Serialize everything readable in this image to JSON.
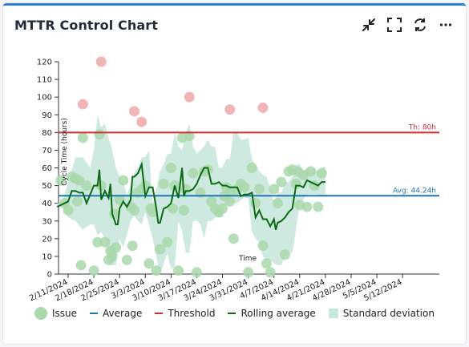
{
  "widget": {
    "title": "MTTR Control Chart",
    "actions": [
      {
        "name": "collapse",
        "icon": "collapse-icon"
      },
      {
        "name": "fullscreen",
        "icon": "fullscreen-icon"
      },
      {
        "name": "refresh",
        "icon": "refresh-icon"
      },
      {
        "name": "more",
        "icon": "more-icon"
      }
    ]
  },
  "chart_data": {
    "type": "scatter",
    "ylabel": "Cycle Time (hours)",
    "xlabel": "Time",
    "ylim": [
      0,
      120
    ],
    "yticks": [
      0,
      10,
      20,
      30,
      40,
      50,
      60,
      70,
      80,
      90,
      100,
      110,
      120
    ],
    "xlim": [
      0,
      101
    ],
    "x_ticks": [
      {
        "x": 0,
        "label": "2/11/2024"
      },
      {
        "x": 7,
        "label": "2/18/2024"
      },
      {
        "x": 14,
        "label": "2/25/2024"
      },
      {
        "x": 21,
        "label": "3/3/2024"
      },
      {
        "x": 28,
        "label": "3/10/2024"
      },
      {
        "x": 35,
        "label": "3/17/2024"
      },
      {
        "x": 42,
        "label": "3/24/2024"
      },
      {
        "x": 49,
        "label": "3/31/2024"
      },
      {
        "x": 56,
        "label": "4/7/2024"
      },
      {
        "x": 63,
        "label": "4/14/2024"
      },
      {
        "x": 70,
        "label": "4/21/2024"
      },
      {
        "x": 77,
        "label": "4/28/2024"
      },
      {
        "x": 84,
        "label": "5/5/2024"
      },
      {
        "x": 91,
        "label": "5/12/2024"
      }
    ],
    "threshold": {
      "value": 80,
      "label": "Th: 80h",
      "color": "#d32f2f"
    },
    "average": {
      "value": 44.24,
      "label": "Avg: 44.24h",
      "color": "#1f77b4"
    },
    "issues": [
      [
        -2,
        53
      ],
      [
        -1,
        40
      ],
      [
        0,
        36
      ],
      [
        1,
        55
      ],
      [
        2,
        54
      ],
      [
        2.5,
        41
      ],
      [
        3,
        53
      ],
      [
        3.5,
        5
      ],
      [
        4,
        77
      ],
      [
        5,
        50
      ],
      [
        7,
        2
      ],
      [
        8,
        18
      ],
      [
        8.5,
        79
      ],
      [
        9,
        50
      ],
      [
        10,
        18
      ],
      [
        11,
        8
      ],
      [
        11.5,
        13
      ],
      [
        12,
        10
      ],
      [
        12.5,
        34
      ],
      [
        13,
        15
      ],
      [
        14,
        42
      ],
      [
        15,
        53
      ],
      [
        16,
        8
      ],
      [
        17,
        38
      ],
      [
        17.5,
        16
      ],
      [
        18,
        36
      ],
      [
        19,
        46
      ],
      [
        20,
        48
      ],
      [
        21,
        50
      ],
      [
        22,
        6
      ],
      [
        22.5,
        37
      ],
      [
        23,
        35
      ],
      [
        24,
        2
      ],
      [
        25,
        14
      ],
      [
        26,
        51
      ],
      [
        27,
        18
      ],
      [
        28,
        60
      ],
      [
        28.5,
        37
      ],
      [
        29,
        50
      ],
      [
        30,
        2
      ],
      [
        31,
        77
      ],
      [
        31.5,
        36
      ],
      [
        32,
        48
      ],
      [
        33,
        78
      ],
      [
        34,
        57
      ],
      [
        35,
        1
      ],
      [
        36,
        46
      ],
      [
        37,
        58
      ],
      [
        38,
        59
      ],
      [
        39,
        41
      ],
      [
        40,
        37
      ],
      [
        41,
        35
      ],
      [
        42,
        37
      ],
      [
        42.5,
        44
      ],
      [
        43,
        49
      ],
      [
        44,
        41
      ],
      [
        44.5,
        47
      ],
      [
        45,
        20
      ],
      [
        46,
        48
      ],
      [
        47,
        51
      ],
      [
        48,
        49
      ],
      [
        49,
        1
      ],
      [
        50,
        60
      ],
      [
        51,
        40
      ],
      [
        52,
        48
      ],
      [
        53,
        16
      ],
      [
        54,
        6
      ],
      [
        55,
        1
      ],
      [
        56,
        48
      ],
      [
        57,
        40
      ],
      [
        58,
        52
      ],
      [
        59,
        11
      ],
      [
        60,
        58
      ],
      [
        61,
        59
      ],
      [
        62,
        51
      ],
      [
        62.5,
        58
      ],
      [
        63,
        39
      ],
      [
        64,
        56
      ],
      [
        65,
        38
      ],
      [
        66,
        58
      ],
      [
        67,
        50
      ],
      [
        68,
        38
      ],
      [
        69,
        57
      ]
    ],
    "outliers": [
      [
        4,
        96
      ],
      [
        9,
        120
      ],
      [
        18,
        92
      ],
      [
        20,
        86
      ],
      [
        33,
        100
      ],
      [
        44,
        93
      ],
      [
        53,
        94
      ]
    ],
    "rolling_average": [
      [
        -3,
        38
      ],
      [
        0,
        41
      ],
      [
        1,
        47
      ],
      [
        2,
        47
      ],
      [
        3,
        46
      ],
      [
        4,
        46
      ],
      [
        5,
        40
      ],
      [
        6,
        45
      ],
      [
        7,
        50
      ],
      [
        8,
        50
      ],
      [
        8.5,
        59
      ],
      [
        9,
        42
      ],
      [
        10,
        47
      ],
      [
        11,
        43
      ],
      [
        11.5,
        51
      ],
      [
        12,
        34
      ],
      [
        13,
        28
      ],
      [
        13.5,
        28
      ],
      [
        14,
        37
      ],
      [
        15,
        41
      ],
      [
        16,
        38
      ],
      [
        17,
        42
      ],
      [
        17.5,
        55
      ],
      [
        18,
        55
      ],
      [
        19,
        57
      ],
      [
        20,
        62
      ],
      [
        21,
        44
      ],
      [
        22,
        49
      ],
      [
        23,
        49
      ],
      [
        24,
        37
      ],
      [
        24.5,
        29
      ],
      [
        25,
        29
      ],
      [
        26,
        37
      ],
      [
        27,
        38
      ],
      [
        28,
        40
      ],
      [
        29,
        50
      ],
      [
        30,
        43
      ],
      [
        31,
        60
      ],
      [
        31.5,
        44
      ],
      [
        32,
        47
      ],
      [
        33,
        47
      ],
      [
        34,
        48
      ],
      [
        35,
        51
      ],
      [
        36,
        56
      ],
      [
        37,
        60
      ],
      [
        38,
        60
      ],
      [
        39,
        51
      ],
      [
        40,
        51
      ],
      [
        41,
        52
      ],
      [
        42,
        50
      ],
      [
        43,
        50
      ],
      [
        44,
        49
      ],
      [
        45,
        49
      ],
      [
        46,
        49
      ],
      [
        47,
        44
      ],
      [
        48,
        45
      ],
      [
        49,
        45
      ],
      [
        50,
        46
      ],
      [
        51,
        32
      ],
      [
        52,
        36
      ],
      [
        53,
        31
      ],
      [
        54,
        31
      ],
      [
        55,
        27
      ],
      [
        56,
        31
      ],
      [
        56.5,
        25
      ],
      [
        57,
        29
      ],
      [
        58,
        30
      ],
      [
        59,
        32
      ],
      [
        60,
        35
      ],
      [
        61,
        37
      ],
      [
        62,
        50
      ],
      [
        63,
        50
      ],
      [
        64,
        49
      ],
      [
        65,
        53
      ],
      [
        66,
        52
      ],
      [
        67,
        51
      ],
      [
        68,
        50
      ],
      [
        69,
        52
      ],
      [
        70,
        52
      ]
    ],
    "std_band": [
      [
        -3,
        38,
        40
      ],
      [
        -2,
        38,
        40
      ],
      [
        0,
        52,
        32
      ],
      [
        2,
        66,
        30
      ],
      [
        4,
        66,
        25
      ],
      [
        6,
        60,
        28
      ],
      [
        7,
        70,
        28
      ],
      [
        8,
        90,
        22
      ],
      [
        9,
        83,
        24
      ],
      [
        10,
        85,
        20
      ],
      [
        11,
        77,
        5
      ],
      [
        12,
        70,
        5
      ],
      [
        13,
        60,
        5
      ],
      [
        14,
        55,
        20
      ],
      [
        15,
        52,
        15
      ],
      [
        16,
        45,
        22
      ],
      [
        17,
        50,
        30
      ],
      [
        18,
        57,
        33
      ],
      [
        19,
        60,
        30
      ],
      [
        20,
        66,
        28
      ],
      [
        21,
        66,
        35
      ],
      [
        22,
        70,
        28
      ],
      [
        23,
        40,
        20
      ],
      [
        24,
        48,
        10
      ],
      [
        25,
        58,
        0
      ],
      [
        26,
        62,
        6
      ],
      [
        27,
        68,
        12
      ],
      [
        28,
        68,
        3
      ],
      [
        29,
        80,
        4
      ],
      [
        30,
        72,
        30
      ],
      [
        31,
        70,
        24
      ],
      [
        32,
        80,
        12
      ],
      [
        33,
        85,
        12
      ],
      [
        34,
        72,
        30
      ],
      [
        35,
        68,
        30
      ],
      [
        36,
        70,
        28
      ],
      [
        37,
        72,
        20
      ],
      [
        38,
        76,
        30
      ],
      [
        39,
        72,
        30
      ],
      [
        40,
        72,
        32
      ],
      [
        41,
        60,
        32
      ],
      [
        42,
        60,
        32
      ],
      [
        43,
        65,
        40
      ],
      [
        44,
        65,
        40
      ],
      [
        45,
        80,
        40
      ],
      [
        46,
        80,
        40
      ],
      [
        47,
        76,
        42
      ],
      [
        48,
        76,
        43
      ],
      [
        49,
        77,
        43
      ],
      [
        50,
        65,
        24
      ],
      [
        51,
        62,
        20
      ],
      [
        52,
        58,
        18
      ],
      [
        53,
        56,
        10
      ],
      [
        54,
        55,
        8
      ],
      [
        55,
        48,
        8
      ],
      [
        56,
        40,
        6
      ],
      [
        57,
        46,
        5
      ],
      [
        58,
        46,
        5
      ],
      [
        59,
        52,
        10
      ],
      [
        60,
        52,
        12
      ],
      [
        61,
        55,
        12
      ],
      [
        62,
        62,
        25
      ],
      [
        63,
        62,
        40
      ],
      [
        64,
        58,
        42
      ],
      [
        65,
        60,
        45
      ],
      [
        66,
        58,
        45
      ],
      [
        67,
        60,
        45
      ],
      [
        68,
        58,
        45
      ],
      [
        69,
        60,
        44
      ],
      [
        70,
        61,
        44
      ]
    ],
    "legend": [
      {
        "label": "Issue",
        "type": "dot",
        "color": "#a9d8ab"
      },
      {
        "label": "Average",
        "type": "line",
        "color": "#1f77b4"
      },
      {
        "label": "Threshold",
        "type": "line",
        "color": "#d32f2f"
      },
      {
        "label": "Rolling average",
        "type": "line",
        "color": "#0b6b14"
      },
      {
        "label": "Standard deviation",
        "type": "rect",
        "color": "#c9e7dc"
      }
    ]
  }
}
